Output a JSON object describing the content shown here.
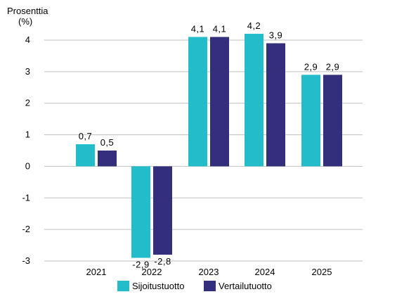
{
  "chart_data": {
    "type": "bar",
    "ylabel_line1": "Prosenttia",
    "ylabel_line2": "(%)",
    "categories": [
      "2021",
      "2022",
      "2023",
      "2024",
      "2025"
    ],
    "series": [
      {
        "name": "Sijoitustuotto",
        "color": "#22bccb",
        "values": [
          0.7,
          -2.9,
          4.1,
          4.2,
          2.9
        ],
        "labels": [
          "0,7",
          "-2,9",
          "4,1",
          "4,2",
          "2,9"
        ]
      },
      {
        "name": "Vertailutuotto",
        "color": "#342f7c",
        "values": [
          0.5,
          -2.8,
          4.1,
          3.9,
          2.9
        ],
        "labels": [
          "0,5",
          "-2,8",
          "4,1",
          "3,9",
          "2,9"
        ]
      }
    ],
    "ylim": [
      -3,
      4
    ],
    "yticks": [
      4,
      3,
      2,
      1,
      0,
      -1,
      -2,
      -3
    ],
    "ytick_labels": [
      "4",
      "3",
      "2",
      "1",
      "0",
      "-1",
      "-2",
      "-3"
    ],
    "grid": true,
    "legend_position": "bottom"
  }
}
